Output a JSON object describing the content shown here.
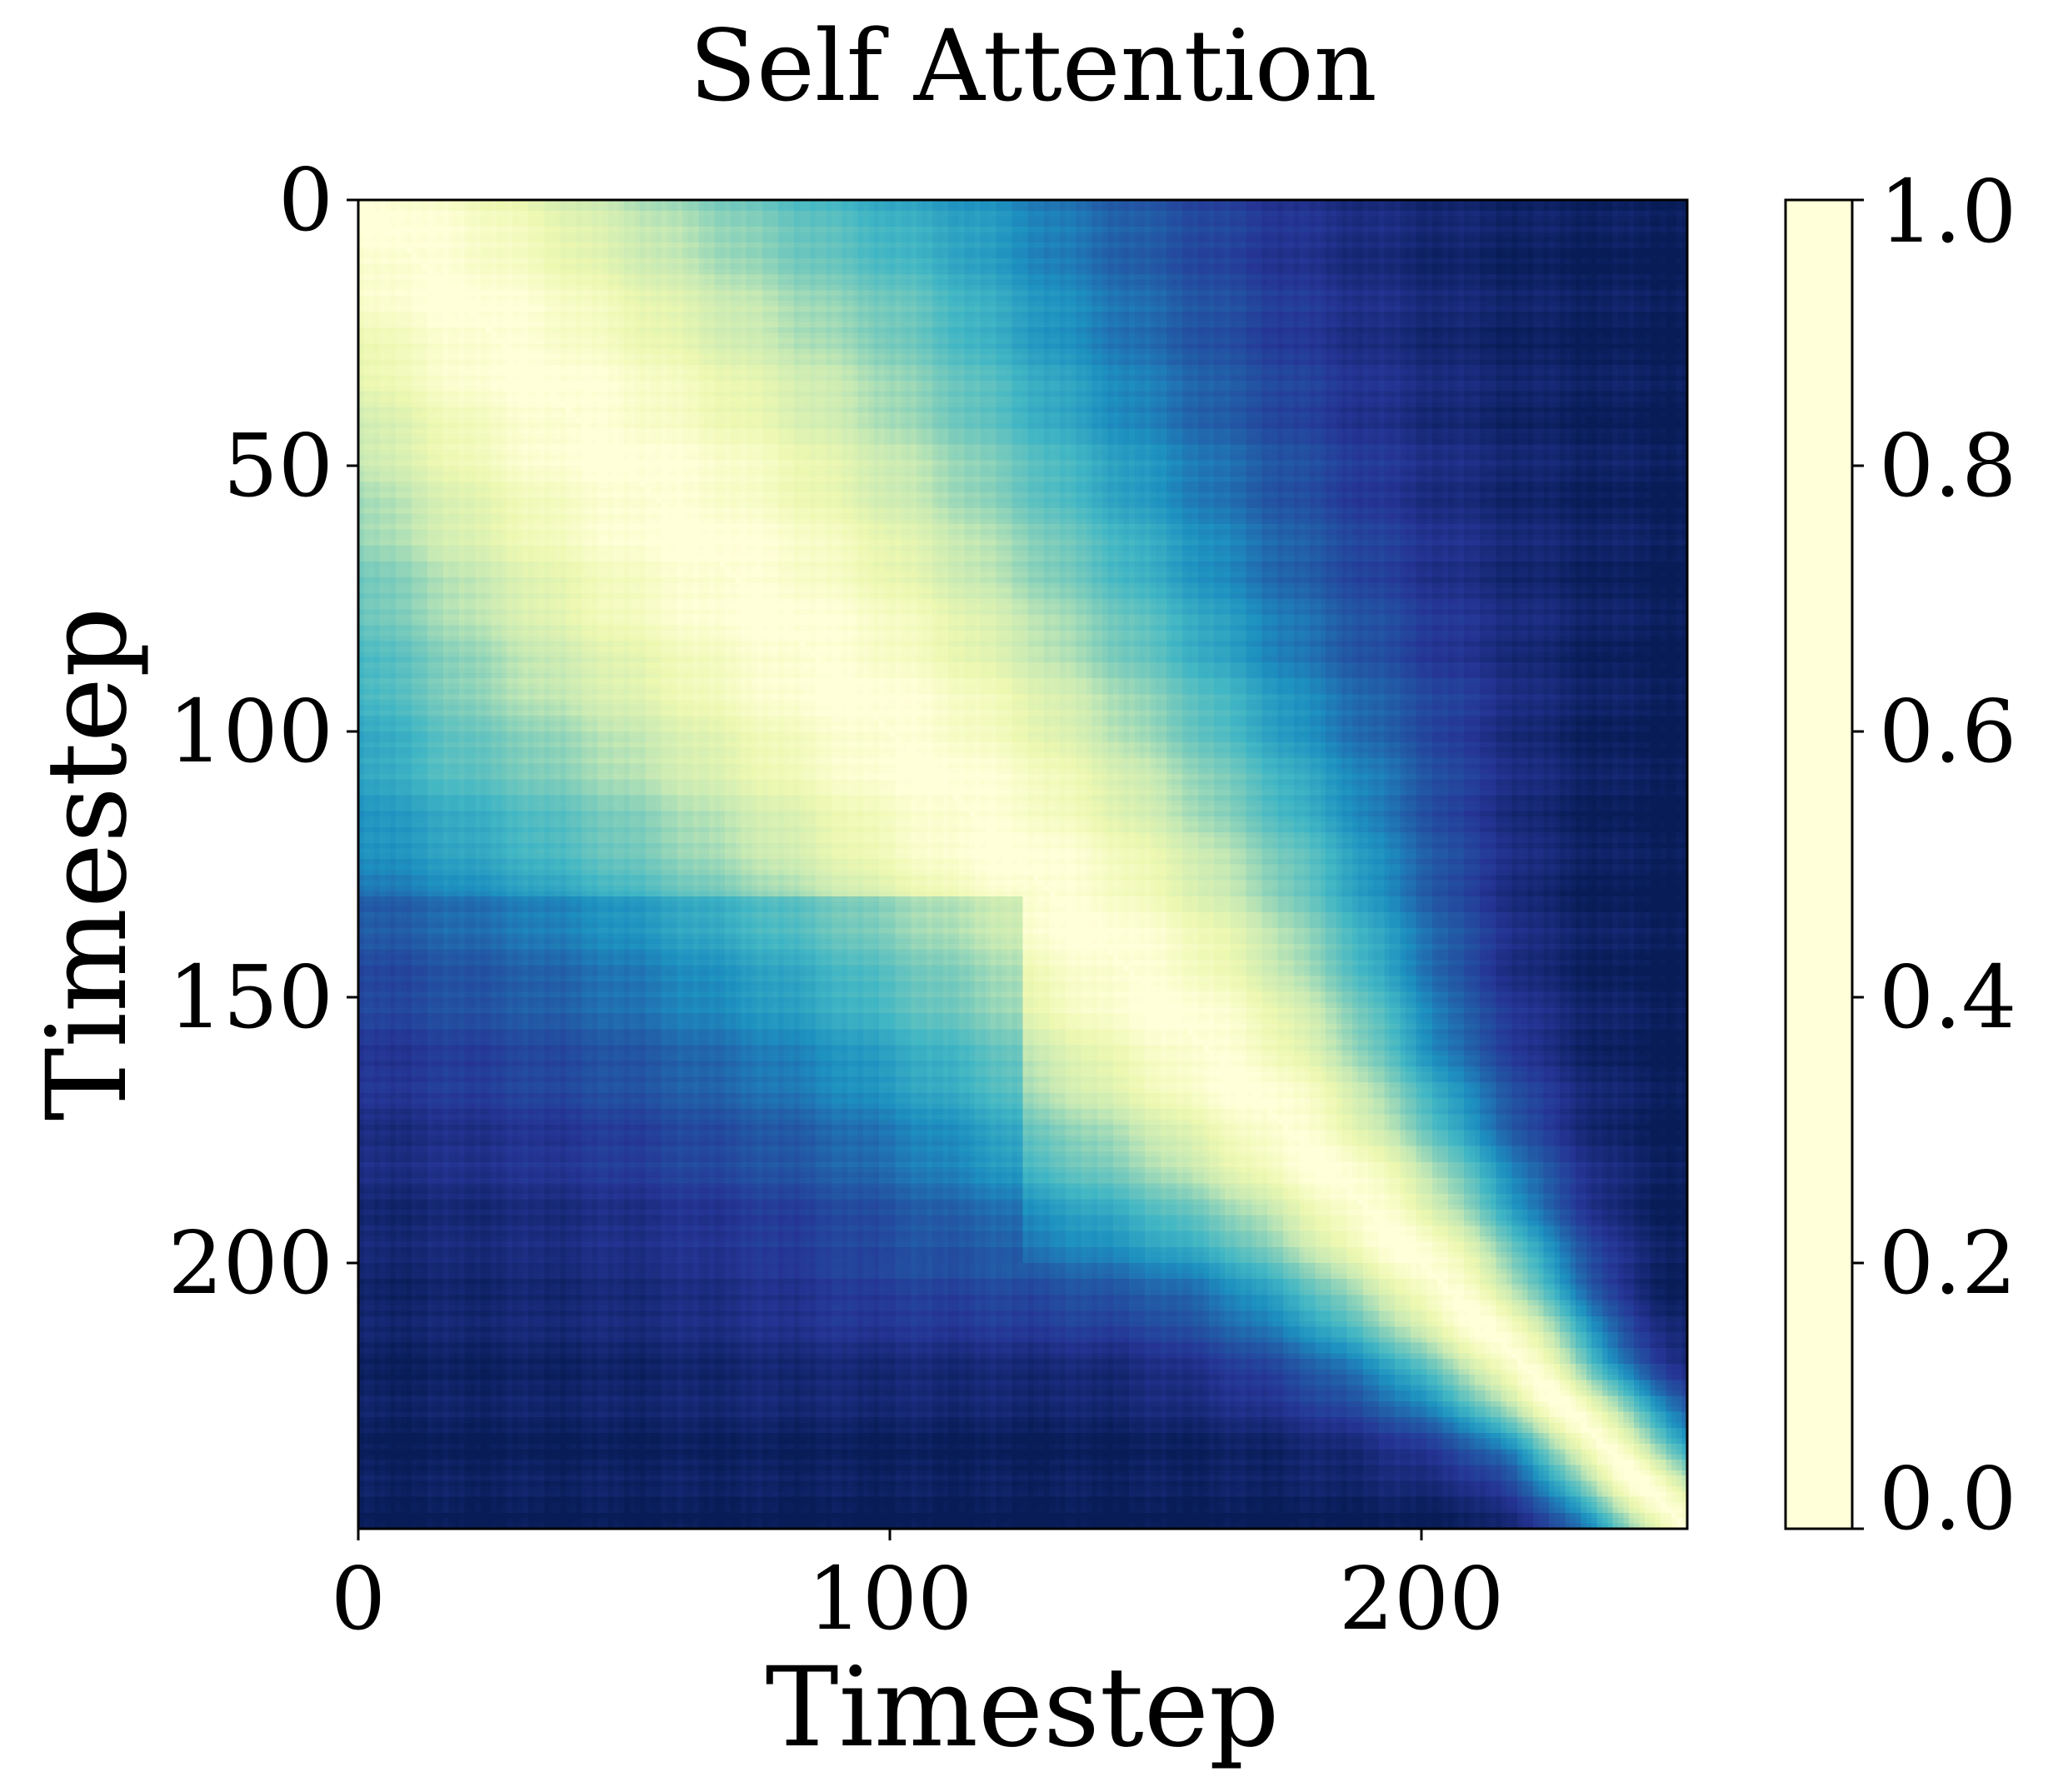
{
  "chart_data": {
    "type": "heatmap",
    "title": "Self Attention",
    "xlabel": "Timestep",
    "ylabel": "Timestep",
    "n": 250,
    "xlim": [
      0,
      250
    ],
    "ylim": [
      250,
      0
    ],
    "x_ticks": [
      0,
      100,
      200
    ],
    "y_ticks": [
      0,
      50,
      100,
      150,
      200
    ],
    "colorbar": {
      "range": [
        0.0,
        1.0
      ],
      "ticks": [
        "0.0",
        "0.2",
        "0.4",
        "0.6",
        "0.8",
        "1.0"
      ],
      "colormap": "YlGnBu",
      "stops": [
        "#ffffd9",
        "#edf8b1",
        "#c7e9b4",
        "#7fcdbb",
        "#41b6c4",
        "#1d91c0",
        "#225ea8",
        "#253494",
        "#081d58"
      ]
    },
    "structure": {
      "diagonal_value": 1.0,
      "bright_block_1": [
        0,
        125
      ],
      "bright_block_2": [
        125,
        250
      ],
      "corner_values": {
        "top-right": 0.0,
        "bottom-left": 0.0
      },
      "note_rows_dark_band": [
        140,
        200
      ]
    }
  }
}
